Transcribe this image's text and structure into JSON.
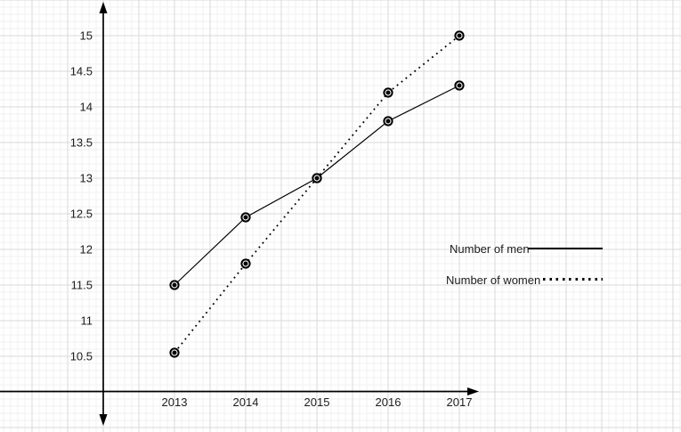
{
  "chart_data": {
    "type": "line",
    "title": "",
    "categories": [
      "2013",
      "2014",
      "2015",
      "2016",
      "2017"
    ],
    "series": [
      {
        "name": "Number of men",
        "line_style": "solid",
        "marker": "ring-dot",
        "values": [
          11.5,
          12.45,
          13,
          13.8,
          14.3
        ]
      },
      {
        "name": "Number of women",
        "line_style": "dotted",
        "marker": "ring-dot",
        "values": [
          10.55,
          11.8,
          13,
          14.2,
          15
        ]
      }
    ],
    "xlabel": "",
    "ylabel": "",
    "y_ticks": [
      "15",
      "14.5",
      "14",
      "13.5",
      "13",
      "12.5",
      "12",
      "11.5",
      "11",
      "10.5"
    ],
    "ylim": [
      10,
      15.5
    ],
    "x_axis_arrow": "right",
    "y_axis_arrows": "both",
    "grid": "minor+major",
    "legend_position": "right-middle",
    "colors": {
      "series": "#000000",
      "axis": "#000000",
      "text": "#1c1c1c",
      "grid_major": "#d8d8d8",
      "grid_minor": "#f1f1f1",
      "marker_fill": "#ffffff",
      "background": "#ffffff"
    }
  },
  "legend": {
    "items": [
      {
        "label": "Number of men",
        "swatch": "solid-line"
      },
      {
        "label": "Number of women",
        "swatch": "dotted-line"
      }
    ]
  }
}
